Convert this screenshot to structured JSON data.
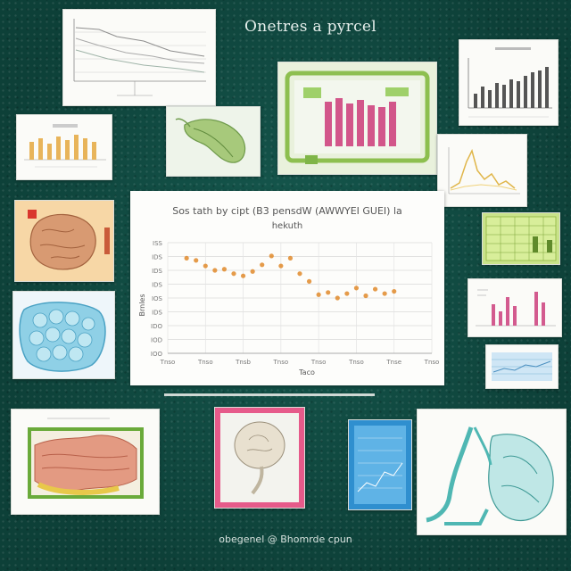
{
  "page": {
    "title": "Onetres a pyrcel",
    "footer": "obegenel @ Bhomrde cpun"
  },
  "chart_data": {
    "type": "scatter",
    "title": "Sos tath by cipt (B3 pensdW (AWWYEI GUEI) la",
    "subtitle": "hekuth",
    "xlabel": "Taco",
    "ylabel": "Brnles",
    "x_tick_labels": [
      "Tnso",
      "Tnso",
      "Tnsb",
      "Tnso",
      "Tnso",
      "Tnso",
      "Tnse",
      "Tnso"
    ],
    "y_tick_labels": [
      "ISS",
      "IDS",
      "IDS",
      "IDS",
      "IOS",
      "IDS",
      "IDO",
      "IOD",
      "IOO"
    ],
    "xlim": [
      0,
      14
    ],
    "ylim": [
      0,
      10
    ],
    "grid": true,
    "point_color": "#e08a2a",
    "x": [
      1,
      1.5,
      2,
      2.5,
      3,
      3.5,
      4,
      4.5,
      5,
      5.5,
      6,
      6.5,
      7,
      7.5,
      8,
      8.5,
      9,
      9.5,
      10,
      10.5,
      11,
      11.5,
      12
    ],
    "y": [
      8.6,
      8.4,
      7.9,
      7.5,
      7.6,
      7.2,
      7.0,
      7.4,
      8.0,
      8.8,
      7.9,
      8.6,
      7.2,
      6.5,
      5.3,
      5.5,
      5.0,
      5.4,
      5.9,
      5.2,
      5.8,
      5.4,
      5.6
    ]
  }
}
